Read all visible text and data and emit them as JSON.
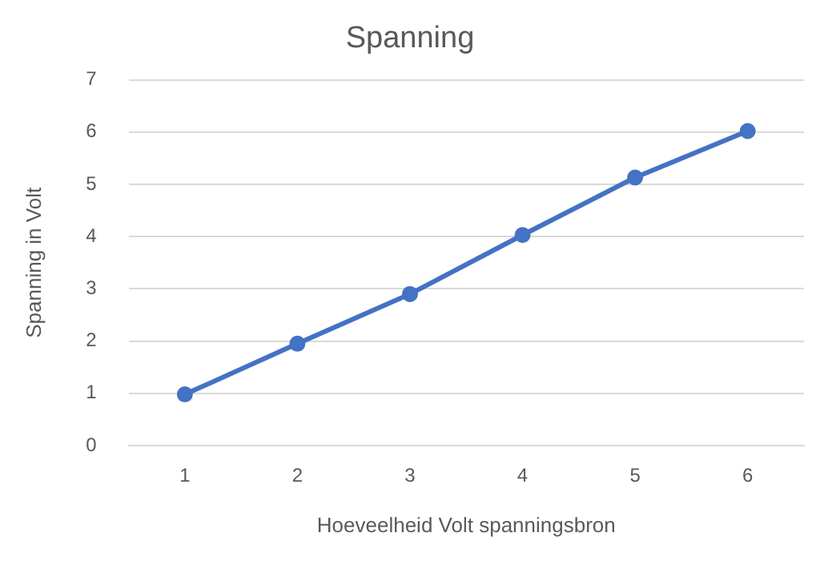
{
  "chart_data": {
    "type": "line",
    "title": "Spanning",
    "xlabel": "Hoeveelheid Volt spanningsbron",
    "ylabel": "Spanning in Volt",
    "categories": [
      "1",
      "2",
      "3",
      "4",
      "5",
      "6"
    ],
    "series": [
      {
        "color": "#4472c4",
        "values": [
          0.98,
          1.95,
          2.9,
          4.03,
          5.13,
          6.02
        ]
      }
    ],
    "ylim": [
      0,
      7
    ],
    "yticks": [
      0,
      1,
      2,
      3,
      4,
      5,
      6,
      7
    ],
    "grid": "y",
    "marker": "circle",
    "line_style": "solid",
    "legend": false
  }
}
